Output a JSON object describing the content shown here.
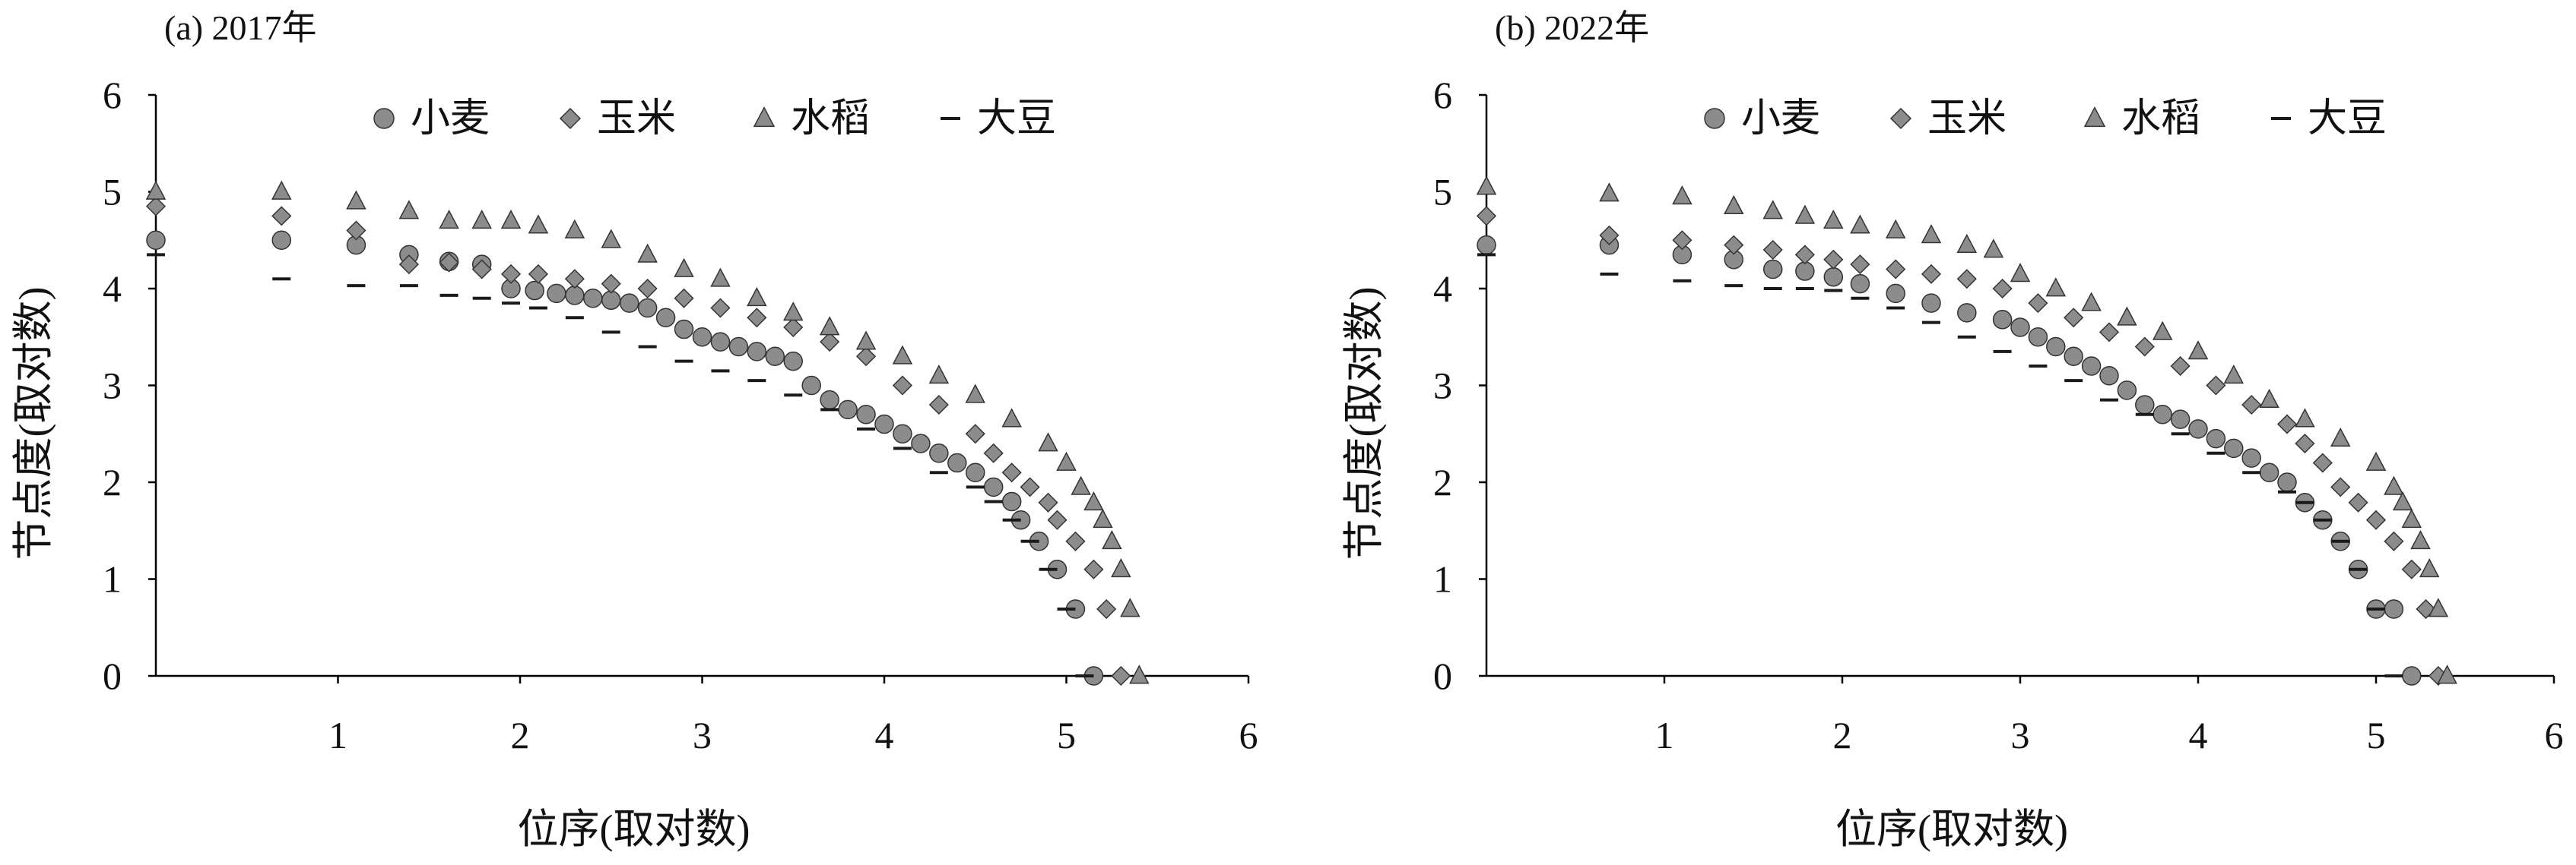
{
  "chart_data": [
    {
      "type": "scatter",
      "title": "(a) 2017年",
      "xlabel": "位序(取对数)",
      "ylabel": "节点度(取对数)",
      "xlim": [
        0,
        6
      ],
      "ylim": [
        0,
        6
      ],
      "xticks": [
        1,
        2,
        3,
        4,
        5,
        6
      ],
      "yticks": [
        0,
        1,
        2,
        3,
        4,
        5,
        6
      ],
      "legend": "top",
      "series": [
        {
          "name": "小麦",
          "color": "#8c8c8c",
          "marker": "circle",
          "x": [
            0,
            0.69,
            1.1,
            1.39,
            1.61,
            1.79,
            1.95,
            2.08,
            2.2,
            2.3,
            2.4,
            2.5,
            2.6,
            2.7,
            2.8,
            2.9,
            3.0,
            3.1,
            3.2,
            3.3,
            3.4,
            3.5,
            3.6,
            3.7,
            3.8,
            3.9,
            4.0,
            4.1,
            4.2,
            4.3,
            4.4,
            4.5,
            4.6,
            4.7,
            4.75,
            4.85,
            4.95,
            5.05,
            5.15
          ],
          "values": [
            4.5,
            4.5,
            4.45,
            4.35,
            4.28,
            4.25,
            4.0,
            3.98,
            3.95,
            3.93,
            3.9,
            3.88,
            3.85,
            3.8,
            3.7,
            3.58,
            3.5,
            3.45,
            3.4,
            3.35,
            3.3,
            3.25,
            3.0,
            2.85,
            2.75,
            2.7,
            2.6,
            2.5,
            2.4,
            2.3,
            2.2,
            2.1,
            1.95,
            1.8,
            1.61,
            1.39,
            1.1,
            0.69,
            0
          ]
        },
        {
          "name": "玉米",
          "color": "#8c8c8c",
          "marker": "diamond",
          "x": [
            0,
            0.69,
            1.1,
            1.39,
            1.61,
            1.79,
            1.95,
            2.1,
            2.3,
            2.5,
            2.7,
            2.9,
            3.1,
            3.3,
            3.5,
            3.7,
            3.9,
            4.1,
            4.3,
            4.5,
            4.6,
            4.7,
            4.8,
            4.9,
            4.95,
            5.05,
            5.15,
            5.22,
            5.3
          ],
          "values": [
            4.85,
            4.75,
            4.6,
            4.25,
            4.27,
            4.2,
            4.15,
            4.15,
            4.1,
            4.05,
            4.0,
            3.9,
            3.8,
            3.7,
            3.6,
            3.45,
            3.3,
            3.0,
            2.8,
            2.5,
            2.3,
            2.1,
            1.95,
            1.79,
            1.61,
            1.39,
            1.1,
            0.69,
            0
          ]
        },
        {
          "name": "水稻",
          "color": "#8c8c8c",
          "marker": "triangle",
          "x": [
            0,
            0.69,
            1.1,
            1.39,
            1.61,
            1.79,
            1.95,
            2.1,
            2.3,
            2.5,
            2.7,
            2.9,
            3.1,
            3.3,
            3.5,
            3.7,
            3.9,
            4.1,
            4.3,
            4.5,
            4.7,
            4.9,
            5.0,
            5.08,
            5.15,
            5.2,
            5.25,
            5.3,
            5.35,
            5.4
          ],
          "values": [
            5.0,
            5.0,
            4.9,
            4.8,
            4.7,
            4.7,
            4.7,
            4.65,
            4.6,
            4.5,
            4.35,
            4.2,
            4.1,
            3.9,
            3.75,
            3.6,
            3.45,
            3.3,
            3.1,
            2.9,
            2.65,
            2.4,
            2.2,
            1.95,
            1.79,
            1.61,
            1.39,
            1.1,
            0.69,
            0
          ]
        },
        {
          "name": "大豆",
          "color": "#1a1a1a",
          "marker": "dash",
          "x": [
            0,
            0.69,
            1.1,
            1.39,
            1.61,
            1.79,
            1.95,
            2.1,
            2.3,
            2.5,
            2.7,
            2.9,
            3.1,
            3.3,
            3.5,
            3.7,
            3.9,
            4.1,
            4.3,
            4.5,
            4.6,
            4.7,
            4.8,
            4.9,
            5.0,
            5.1
          ],
          "values": [
            4.35,
            4.1,
            4.03,
            4.03,
            3.93,
            3.9,
            3.85,
            3.8,
            3.7,
            3.55,
            3.4,
            3.25,
            3.15,
            3.05,
            2.9,
            2.75,
            2.55,
            2.35,
            2.1,
            1.95,
            1.8,
            1.61,
            1.39,
            1.1,
            0.69,
            0
          ]
        }
      ]
    },
    {
      "type": "scatter",
      "title": "(b) 2022年",
      "xlabel": "位序(取对数)",
      "ylabel": "节点度(取对数)",
      "xlim": [
        0,
        6
      ],
      "ylim": [
        0,
        6
      ],
      "xticks": [
        1,
        2,
        3,
        4,
        5,
        6
      ],
      "yticks": [
        0,
        1,
        2,
        3,
        4,
        5,
        6
      ],
      "legend": "top",
      "series": [
        {
          "name": "小麦",
          "color": "#8c8c8c",
          "marker": "circle",
          "x": [
            0,
            0.69,
            1.1,
            1.39,
            1.61,
            1.79,
            1.95,
            2.1,
            2.3,
            2.5,
            2.7,
            2.9,
            3.0,
            3.1,
            3.2,
            3.3,
            3.4,
            3.5,
            3.6,
            3.7,
            3.8,
            3.9,
            4.0,
            4.1,
            4.2,
            4.3,
            4.4,
            4.5,
            4.6,
            4.7,
            4.8,
            4.9,
            5.0,
            5.1,
            5.2
          ],
          "values": [
            4.45,
            4.45,
            4.35,
            4.3,
            4.2,
            4.18,
            4.12,
            4.05,
            3.95,
            3.85,
            3.75,
            3.68,
            3.6,
            3.5,
            3.4,
            3.3,
            3.2,
            3.1,
            2.95,
            2.8,
            2.7,
            2.65,
            2.55,
            2.45,
            2.35,
            2.25,
            2.1,
            2.0,
            1.79,
            1.61,
            1.39,
            1.1,
            0.69,
            0.69,
            0
          ]
        },
        {
          "name": "玉米",
          "color": "#8c8c8c",
          "marker": "diamond",
          "x": [
            0,
            0.69,
            1.1,
            1.39,
            1.61,
            1.79,
            1.95,
            2.1,
            2.3,
            2.5,
            2.7,
            2.9,
            3.1,
            3.3,
            3.5,
            3.7,
            3.9,
            4.1,
            4.3,
            4.5,
            4.6,
            4.7,
            4.8,
            4.9,
            5.0,
            5.1,
            5.2,
            5.28,
            5.35
          ],
          "values": [
            4.75,
            4.55,
            4.5,
            4.45,
            4.4,
            4.35,
            4.3,
            4.25,
            4.2,
            4.15,
            4.1,
            4.0,
            3.85,
            3.7,
            3.55,
            3.4,
            3.2,
            3.0,
            2.8,
            2.6,
            2.4,
            2.2,
            1.95,
            1.79,
            1.61,
            1.39,
            1.1,
            0.69,
            0
          ]
        },
        {
          "name": "水稻",
          "color": "#8c8c8c",
          "marker": "triangle",
          "x": [
            0,
            0.69,
            1.1,
            1.39,
            1.61,
            1.79,
            1.95,
            2.1,
            2.3,
            2.5,
            2.7,
            2.85,
            3.0,
            3.2,
            3.4,
            3.6,
            3.8,
            4.0,
            4.2,
            4.4,
            4.6,
            4.8,
            5.0,
            5.1,
            5.15,
            5.2,
            5.25,
            5.3,
            5.35,
            5.4
          ],
          "values": [
            5.05,
            4.98,
            4.95,
            4.85,
            4.8,
            4.75,
            4.7,
            4.65,
            4.6,
            4.55,
            4.45,
            4.4,
            4.15,
            4.0,
            3.85,
            3.7,
            3.55,
            3.35,
            3.1,
            2.85,
            2.65,
            2.45,
            2.2,
            1.95,
            1.79,
            1.61,
            1.39,
            1.1,
            0.69,
            0
          ]
        },
        {
          "name": "大豆",
          "color": "#1a1a1a",
          "marker": "dash",
          "x": [
            0,
            0.69,
            1.1,
            1.39,
            1.61,
            1.79,
            1.95,
            2.1,
            2.3,
            2.5,
            2.7,
            2.9,
            3.1,
            3.3,
            3.5,
            3.7,
            3.9,
            4.1,
            4.3,
            4.5,
            4.6,
            4.7,
            4.8,
            4.9,
            5.0,
            5.1
          ],
          "values": [
            4.35,
            4.15,
            4.08,
            4.03,
            4.0,
            4.0,
            3.98,
            3.9,
            3.8,
            3.65,
            3.5,
            3.35,
            3.2,
            3.05,
            2.85,
            2.7,
            2.5,
            2.3,
            2.1,
            1.9,
            1.79,
            1.61,
            1.39,
            1.1,
            0.69,
            0
          ]
        }
      ]
    }
  ]
}
